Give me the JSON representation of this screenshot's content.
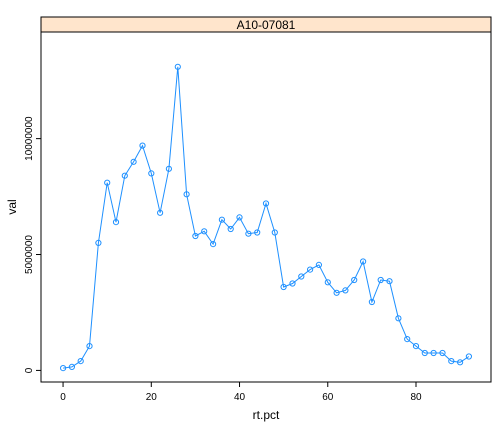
{
  "chart_data": {
    "type": "line",
    "strip_title": "A10-07081",
    "xlabel": "rt.pct",
    "ylabel": "val",
    "xlim": [
      -5,
      97
    ],
    "ylim": [
      -500000,
      14600000
    ],
    "x_ticks": [
      0,
      20,
      40,
      60,
      80
    ],
    "x_tick_labels": [
      "0",
      "20",
      "40",
      "60",
      "80"
    ],
    "y_ticks": [
      0,
      5000000,
      10000000
    ],
    "y_tick_labels": [
      "0",
      "5000000",
      "10000000"
    ],
    "grid": false,
    "legend": "none",
    "colors": {
      "series": "#1e90ff",
      "strip_bg": "#ffe5cc",
      "frame": "#000000"
    },
    "series": [
      {
        "x": [
          0,
          2,
          4,
          6,
          8,
          10,
          12,
          14,
          16,
          18,
          20,
          22,
          24,
          26,
          28,
          30,
          32,
          34,
          36,
          38,
          40,
          42,
          44,
          46,
          48,
          50,
          52,
          54,
          56,
          58,
          60,
          62,
          64,
          66,
          68,
          70,
          72,
          74,
          76,
          78,
          80,
          82,
          84,
          86,
          88,
          90,
          92
        ],
        "values": [
          100000,
          150000,
          400000,
          1050000,
          5500000,
          8100000,
          6400000,
          8400000,
          9000000,
          9700000,
          8500000,
          6800000,
          8700000,
          13100000,
          7600000,
          5800000,
          6000000,
          5450000,
          6500000,
          6100000,
          6600000,
          5900000,
          5950000,
          7200000,
          5950000,
          3600000,
          3750000,
          4050000,
          4350000,
          4550000,
          3800000,
          3350000,
          3450000,
          3900000,
          4700000,
          2950000,
          3900000,
          3850000,
          2250000,
          1350000,
          1050000,
          750000,
          750000,
          750000,
          400000,
          350000,
          600000
        ]
      }
    ]
  }
}
